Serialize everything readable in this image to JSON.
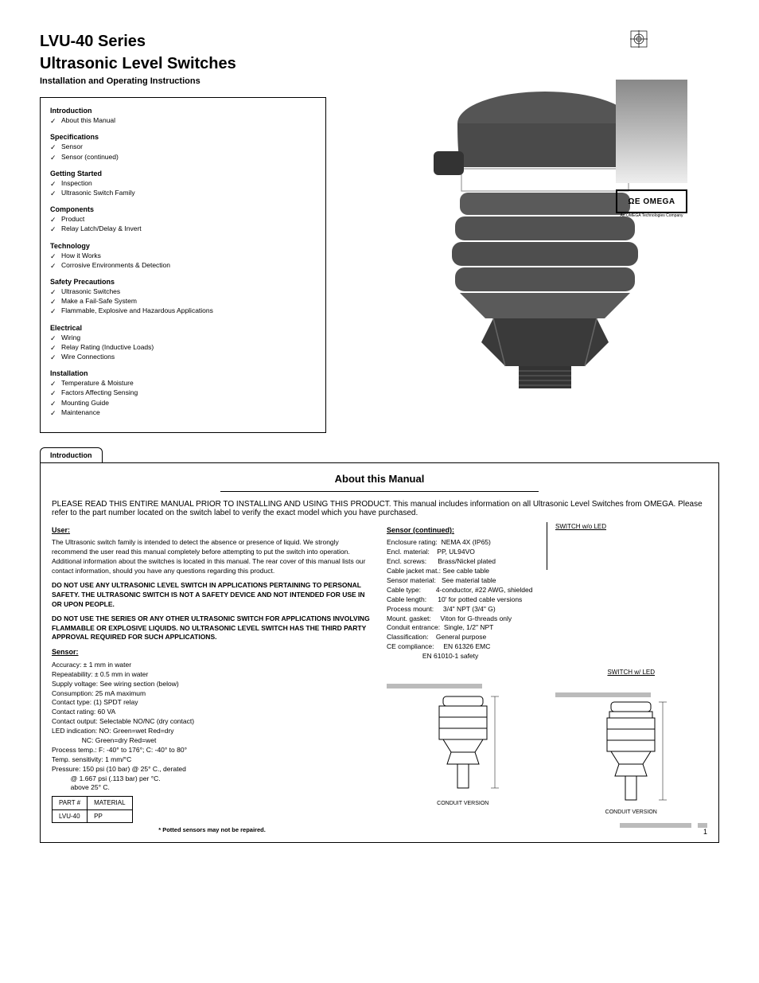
{
  "header": {
    "title_line1": "LVU-40 Series",
    "title_line2": "Ultrasonic Level Switches",
    "subtitle": "Installation and Operating Instructions"
  },
  "index": {
    "groups": [
      {
        "heading": "Introduction",
        "items": [
          "About this Manual"
        ]
      },
      {
        "heading": "Specifications",
        "items": [
          "Sensor",
          "Sensor (continued)"
        ]
      },
      {
        "heading": "Getting Started",
        "items": [
          "Inspection",
          "Ultrasonic Switch Family"
        ]
      },
      {
        "heading": "Components",
        "items": [
          "Product",
          "Relay Latch/Delay & Invert"
        ]
      },
      {
        "heading": "Technology",
        "items": [
          "How it Works",
          "Corrosive Environments & Detection"
        ]
      },
      {
        "heading": "Safety Precautions",
        "items": [
          "Ultrasonic Switches",
          "Make a Fail-Safe System",
          "Flammable, Explosive and Hazardous Applications"
        ]
      },
      {
        "heading": "Electrical",
        "items": [
          "Wiring",
          "Relay Rating (Inductive Loads)",
          "Wire Connections"
        ]
      },
      {
        "heading": "Installation",
        "items": [
          "Temperature & Moisture",
          "Factors Affecting Sensing",
          "Mounting Guide",
          "Maintenance"
        ]
      }
    ]
  },
  "logo": {
    "text": "ΩE OMEGA",
    "sub": "An OMEGA Technologies Company"
  },
  "tabs": {
    "first": "Introduction"
  },
  "lowerBox": {
    "title": "About this Manual",
    "introduction": "PLEASE READ THIS ENTIRE MANUAL PRIOR TO INSTALLING AND USING THIS PRODUCT. This manual includes information on all Ultrasonic Level Switches from OMEGA. Please refer to the part number located on the switch label to verify the exact model which you have purchased.",
    "user": "The Ultrasonic switch family is intended to detect the absence or presence of liquid. We strongly recommend the user read this manual completely before attempting to put the switch into operation. Additional information about the switches is located in this manual. The rear cover of this manual lists our contact information, should you have any questions regarding this product.",
    "warning1": "DO NOT USE ANY ULTRASONIC LEVEL SWITCH IN APPLICATIONS PERTAINING TO PERSONAL SAFETY. THE ULTRASONIC SWITCH IS NOT A SAFETY DEVICE AND NOT INTENDED FOR USE IN OR UPON PEOPLE.",
    "warning2": "DO NOT USE THE SERIES OR ANY OTHER ULTRASONIC SWITCH FOR APPLICATIONS INVOLVING FLAMMABLE OR EXPLOSIVE LIQUIDS. NO ULTRASONIC LEVEL SWITCH HAS THE THIRD PARTY APPROVAL REQUIRED FOR SUCH APPLICATIONS.",
    "sensorSpec": {
      "heading": "Sensor:",
      "rows": [
        "Accuracy: ± 1 mm in water",
        "Repeatability: ± 0.5 mm in water",
        "Supply voltage: See wiring section (below)",
        "Consumption: 25 mA maximum",
        "Contact type: (1) SPDT relay",
        "Contact rating: 60 VA",
        "Contact output: Selectable NO/NC (dry contact)",
        "LED indication: NO: Green=wet Red=dry",
        "                NC: Green=dry Red=wet",
        "Process temp.: F: -40° to 176°; C: -40° to 80°",
        "Temp. sensitivity: 1 mm/°C",
        "Pressure: 150 psi (10 bar) @ 25° C., derated",
        "          @ 1.667 psi (.113 bar) per °C.",
        "          above 25° C."
      ],
      "table": {
        "h1": "PART #",
        "h2": "MATERIAL",
        "r1c1": "LVU-40",
        "r1c2": "PP"
      },
      "potted": "* Potted sensors may not be repaired."
    },
    "sensorCont": {
      "heading": "Sensor (continued):",
      "rows": [
        "Enclosure rating:  NEMA 4X (IP65)",
        "Encl. material:    PP, UL94VO",
        "Encl. screws:      Brass/Nickel plated",
        "Cable jacket mat.: See cable table",
        "Sensor material:   See material table",
        "Cable type:        4-conductor, #22 AWG, shielded",
        "Cable length:      10' for potted cable versions",
        "Process mount:     3/4\" NPT (3/4\" G)",
        "Mount. gasket:     Viton for G-threads only",
        "Conduit entrance:  Single, 1/2\" NPT",
        "Classification:    General purpose",
        "CE compliance:     EN 61326 EMC",
        "                   EN 61010-1 safety"
      ]
    },
    "diag1": {
      "title": "SWITCH w/o LED",
      "caption": "CONDUIT VERSION"
    },
    "diag2": {
      "title": "SWITCH w/ LED",
      "caption": "CONDUIT VERSION"
    }
  },
  "pageNo": "1",
  "colors": {
    "grey": "#bbbbbb",
    "text": "#000000"
  }
}
